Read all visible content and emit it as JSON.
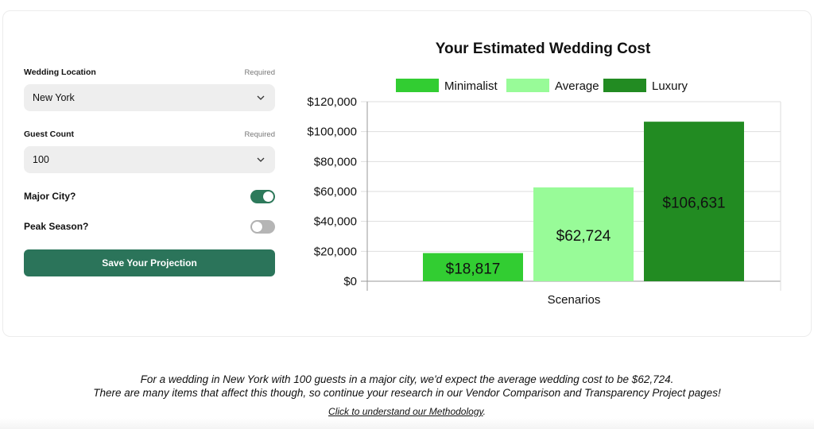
{
  "form": {
    "location_label": "Wedding Location",
    "location_required": "Required",
    "location_value": "New York",
    "guest_label": "Guest Count",
    "guest_required": "Required",
    "guest_value": "100",
    "major_city_label": "Major City?",
    "major_city_on": true,
    "peak_season_label": "Peak Season?",
    "peak_season_on": false,
    "save_label": "Save Your Projection"
  },
  "colors": {
    "accent": "#2b745a",
    "minimalist": "#32cd32",
    "average": "#98fb98",
    "luxury": "#228b22"
  },
  "chart_data": {
    "type": "bar",
    "title": "Your Estimated Wedding Cost",
    "xlabel": "Scenarios",
    "ylabel": "",
    "categories": [
      "Scenarios"
    ],
    "series": [
      {
        "name": "Minimalist",
        "values": [
          18817
        ],
        "label": "$18,817",
        "color": "#32cd32"
      },
      {
        "name": "Average",
        "values": [
          62724
        ],
        "label": "$62,724",
        "color": "#98fb98"
      },
      {
        "name": "Luxury",
        "values": [
          106631
        ],
        "label": "$106,631",
        "color": "#228b22"
      }
    ],
    "ylim": [
      0,
      120000
    ],
    "yticks": [
      0,
      20000,
      40000,
      60000,
      80000,
      100000,
      120000
    ],
    "ytick_labels": [
      "$0",
      "$20,000",
      "$40,000",
      "$60,000",
      "$80,000",
      "$100,000",
      "$120,000"
    ],
    "grid": true,
    "legend": "top"
  },
  "footer": {
    "line1": "For a wedding in New York with 100 guests in a major city, we'd expect the average wedding cost to be $62,724.",
    "line2": "There are many items that affect this though, so continue your research in our Vendor Comparison and Transparency Project pages!",
    "method_link": "Click to understand our Methodology",
    "method_suffix": "."
  }
}
